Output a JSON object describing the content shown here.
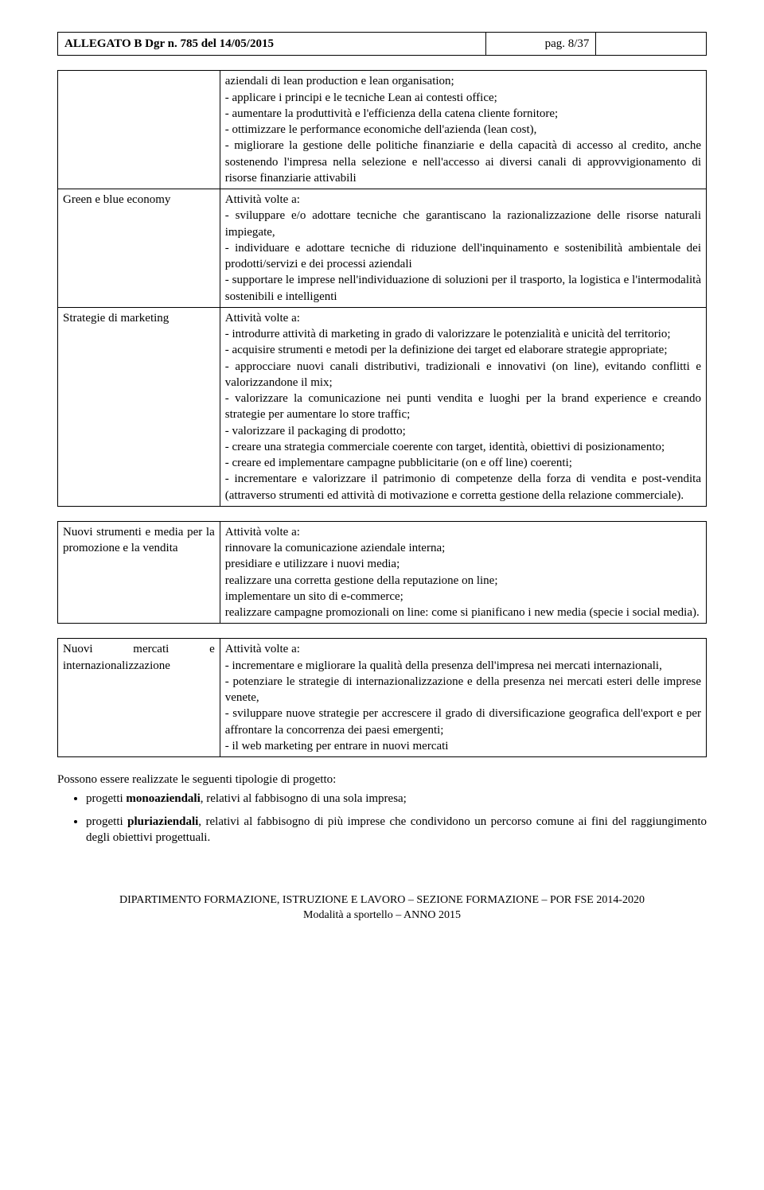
{
  "header": {
    "title": "ALLEGATO B Dgr n. 785 del 14/05/2015",
    "page_label": "pag. 8/37"
  },
  "rows": [
    {
      "label": "",
      "content": "aziendali di lean production e lean organisation;\n- applicare i principi e le tecniche Lean ai contesti office;\n- aumentare la produttività e l'efficienza della catena cliente fornitore;\n- ottimizzare le performance economiche dell'azienda (lean cost),\n- migliorare la gestione delle politiche finanziarie e della capacità di accesso al credito, anche sostenendo l'impresa nella selezione e nell'accesso ai diversi canali di approvvigionamento di risorse finanziarie attivabili"
    },
    {
      "label": "Green e blue economy",
      "content": "Attività volte a:\n- sviluppare e/o adottare tecniche che garantiscano la razionalizzazione delle risorse naturali impiegate,\n- individuare e adottare tecniche di riduzione dell'inquinamento e sostenibilità ambientale dei prodotti/servizi e dei processi aziendali\n- supportare le imprese nell'individuazione di soluzioni per il trasporto, la logistica e l'intermodalità sostenibili e intelligenti"
    },
    {
      "label": "Strategie di marketing",
      "content": "Attività volte a:\n- introdurre attività di marketing in grado di valorizzare le potenzialità e unicità del territorio;\n- acquisire strumenti e metodi per la definizione dei target ed elaborare strategie appropriate;\n- approcciare nuovi canali distributivi, tradizionali e innovativi (on line), evitando conflitti e valorizzandone il mix;\n- valorizzare la comunicazione nei punti vendita e luoghi per la brand experience e creando strategie per aumentare lo store traffic;\n- valorizzare il packaging di prodotto;\n- creare una strategia commerciale coerente con target, identità, obiettivi di posizionamento;\n- creare ed implementare campagne pubblicitarie (on e off line) coerenti;\n- incrementare e valorizzare il patrimonio di competenze della forza di vendita e post-vendita (attraverso strumenti ed attività di motivazione e corretta gestione della relazione commerciale)."
    },
    {
      "label": "Nuovi strumenti e media per la promozione e la vendita",
      "content": "Attività volte a:\nrinnovare la comunicazione aziendale interna;\npresidiare e utilizzare i nuovi media;\nrealizzare una corretta gestione della reputazione on line;\nimplementare un sito di e-commerce;\nrealizzare campagne promozionali on line: come si pianificano i new media (specie i social media)."
    },
    {
      "label": "Nuovi mercati e internazionalizzazione",
      "content": "Attività volte a:\n- incrementare e migliorare la qualità della presenza dell'impresa nei mercati internazionali,\n- potenziare le strategie di internazionalizzazione e della presenza nei mercati esteri delle imprese venete,\n- sviluppare nuove strategie per accrescere il grado di diversificazione geografica dell'export e per affrontare la concorrenza dei paesi emergenti;\n- il web marketing per entrare in nuovi mercati"
    }
  ],
  "post": {
    "intro": "Possono essere realizzate le seguenti tipologie di progetto:",
    "bullet1_prefix": "progetti ",
    "bullet1_bold": "monoaziendali",
    "bullet1_suffix": ", relativi al fabbisogno di una sola impresa;",
    "bullet2_prefix": "progetti ",
    "bullet2_bold": "pluriaziendali",
    "bullet2_suffix": ", relativi al fabbisogno di più imprese che condividono un percorso comune ai fini del raggiungimento degli obiettivi progettuali."
  },
  "footer": {
    "line1": "DIPARTIMENTO FORMAZIONE, ISTRUZIONE E LAVORO – SEZIONE FORMAZIONE – POR FSE 2014-2020",
    "line2": "Modalità a sportello – ANNO 2015"
  }
}
